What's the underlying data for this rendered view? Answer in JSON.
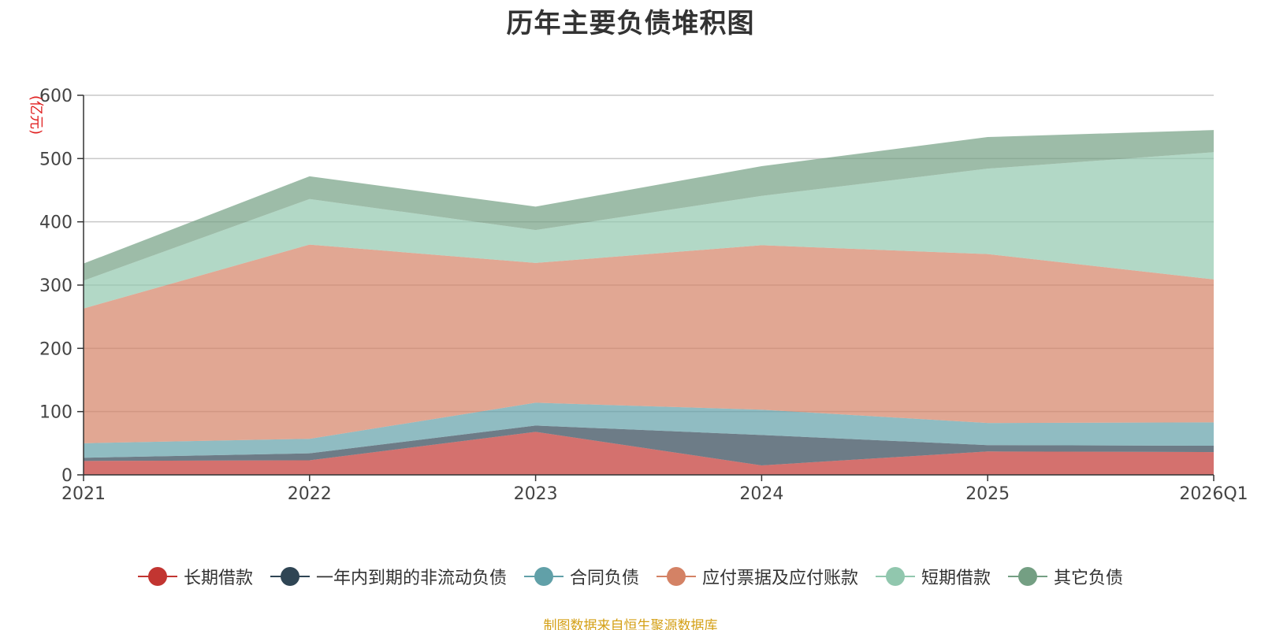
{
  "chart_data": {
    "type": "area",
    "stacked": true,
    "title": "历年主要负债堆积图",
    "ylabel": "(亿元)",
    "xlabel": "",
    "ylim": [
      0,
      600
    ],
    "yticks": [
      0,
      100,
      200,
      300,
      400,
      500,
      600
    ],
    "grid": true,
    "legend_position": "bottom",
    "categories": [
      "2021",
      "2022",
      "2023",
      "2024",
      "2025",
      "2026Q1"
    ],
    "series": [
      {
        "name": "长期借款",
        "color": "#c23531",
        "values": [
          22,
          23,
          68,
          15,
          37,
          36
        ]
      },
      {
        "name": "一年内到期的非流动负债",
        "color": "#2f4554",
        "values": [
          5,
          11,
          10,
          48,
          10,
          10
        ]
      },
      {
        "name": "合同负债",
        "color": "#61a0a8",
        "values": [
          23,
          23,
          36,
          40,
          35,
          37
        ]
      },
      {
        "name": "应付票据及应付账款",
        "color": "#d48265",
        "values": [
          213,
          307,
          221,
          260,
          267,
          226
        ]
      },
      {
        "name": "短期借款",
        "color": "#91c7ae",
        "values": [
          44,
          72,
          52,
          78,
          135,
          201
        ]
      },
      {
        "name": "其它负债",
        "color": "#749f83",
        "values": [
          27,
          36,
          37,
          47,
          50,
          35
        ]
      }
    ]
  },
  "footer": "制图数据来自恒生聚源数据库"
}
